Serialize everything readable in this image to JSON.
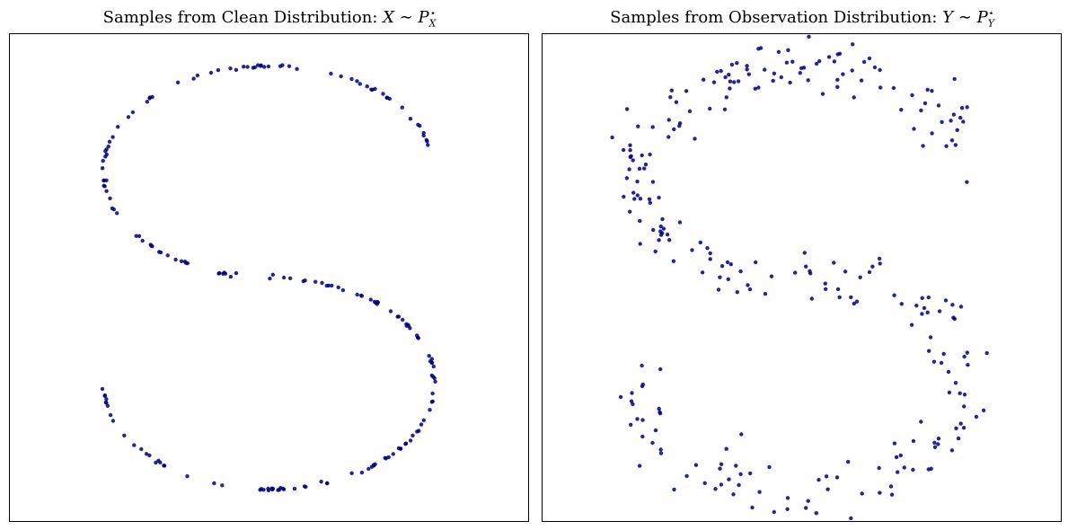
{
  "chart_data": [
    {
      "type": "scatter",
      "title_text": "Samples from Clean Distribution: ",
      "title_math": "X ∼ P",
      "title_sub": "X",
      "title_sup": "⋆",
      "xlabel": "",
      "ylabel": "",
      "xlim": [
        -1.25,
        1.25
      ],
      "ylim": [
        -1.15,
        1.15
      ],
      "grid": false,
      "ticks": false,
      "marker_color": "#000080",
      "noise": 0.0,
      "n_points": 200,
      "seed": 7
    },
    {
      "type": "scatter",
      "title_text": "Samples from Observation Distribution: ",
      "title_math": "Y ∼ P",
      "title_sub": "Y",
      "title_sup": "⋆",
      "xlabel": "",
      "ylabel": "",
      "xlim": [
        -1.25,
        1.25
      ],
      "ylim": [
        -1.15,
        1.15
      ],
      "grid": false,
      "ticks": false,
      "marker_color": "#000080",
      "noise": 0.07,
      "n_points": 280,
      "seed": 11
    }
  ]
}
